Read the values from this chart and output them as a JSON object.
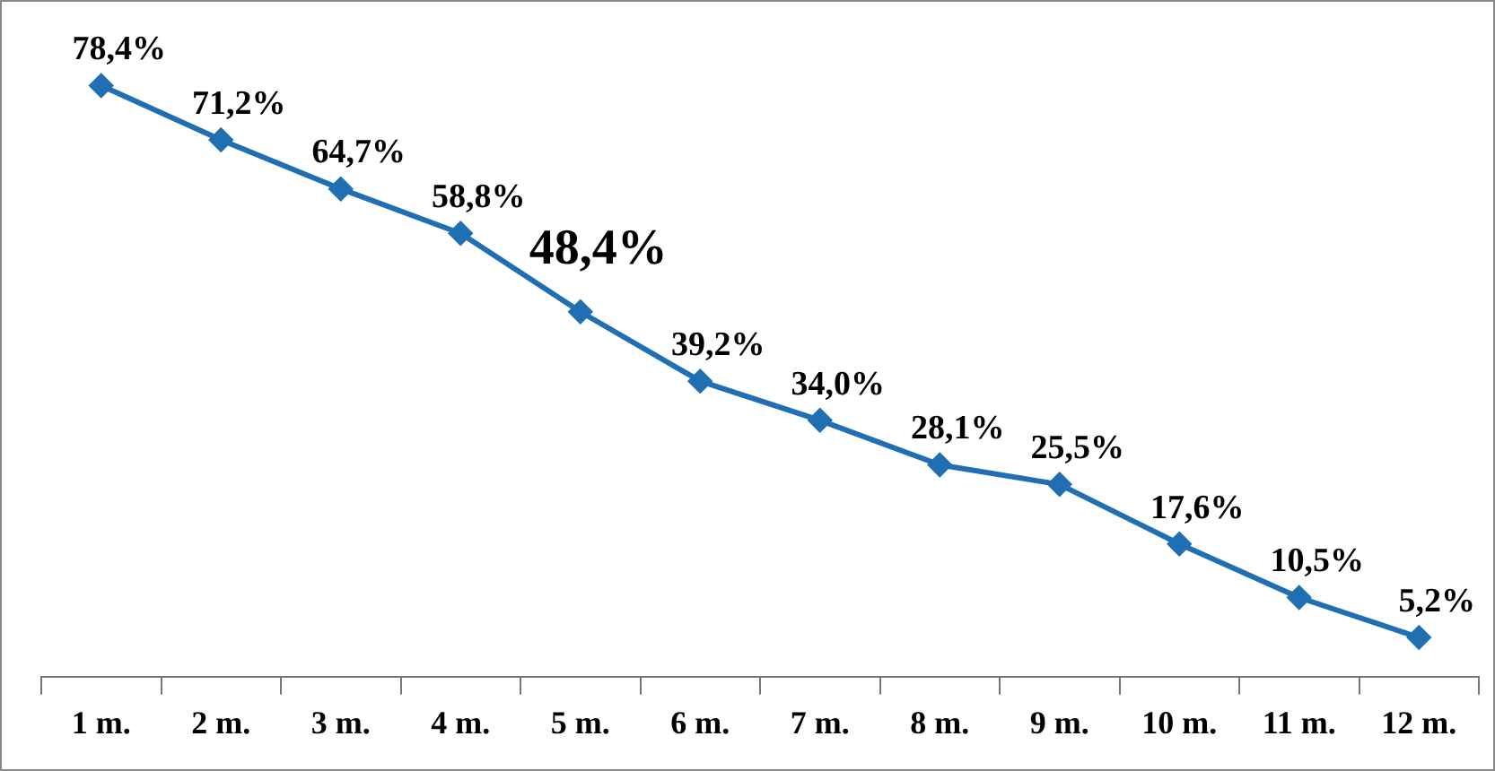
{
  "chart_data": {
    "type": "line",
    "categories": [
      "1 m.",
      "2 m.",
      "3 m.",
      "4 m.",
      "5 m.",
      "6 m.",
      "7 m.",
      "8 m.",
      "9 m.",
      "10 m.",
      "11 m.",
      "12 m."
    ],
    "series": [
      {
        "color": "#1f6fb2",
        "values": [
          78.4,
          71.2,
          64.7,
          58.8,
          48.4,
          39.2,
          34.0,
          28.1,
          25.5,
          17.6,
          10.5,
          5.2
        ],
        "value_labels": [
          "78,4%",
          "71,2%",
          "64,7%",
          "58,8%",
          "48,4%",
          "39,2%",
          "34,0%",
          "28,1%",
          "25,5%",
          "17,6%",
          "10,5%",
          "5,2%"
        ]
      }
    ],
    "marker": "diamond",
    "line_style": "solid",
    "grid": false,
    "legend": false,
    "tick_labels": "x"
  }
}
